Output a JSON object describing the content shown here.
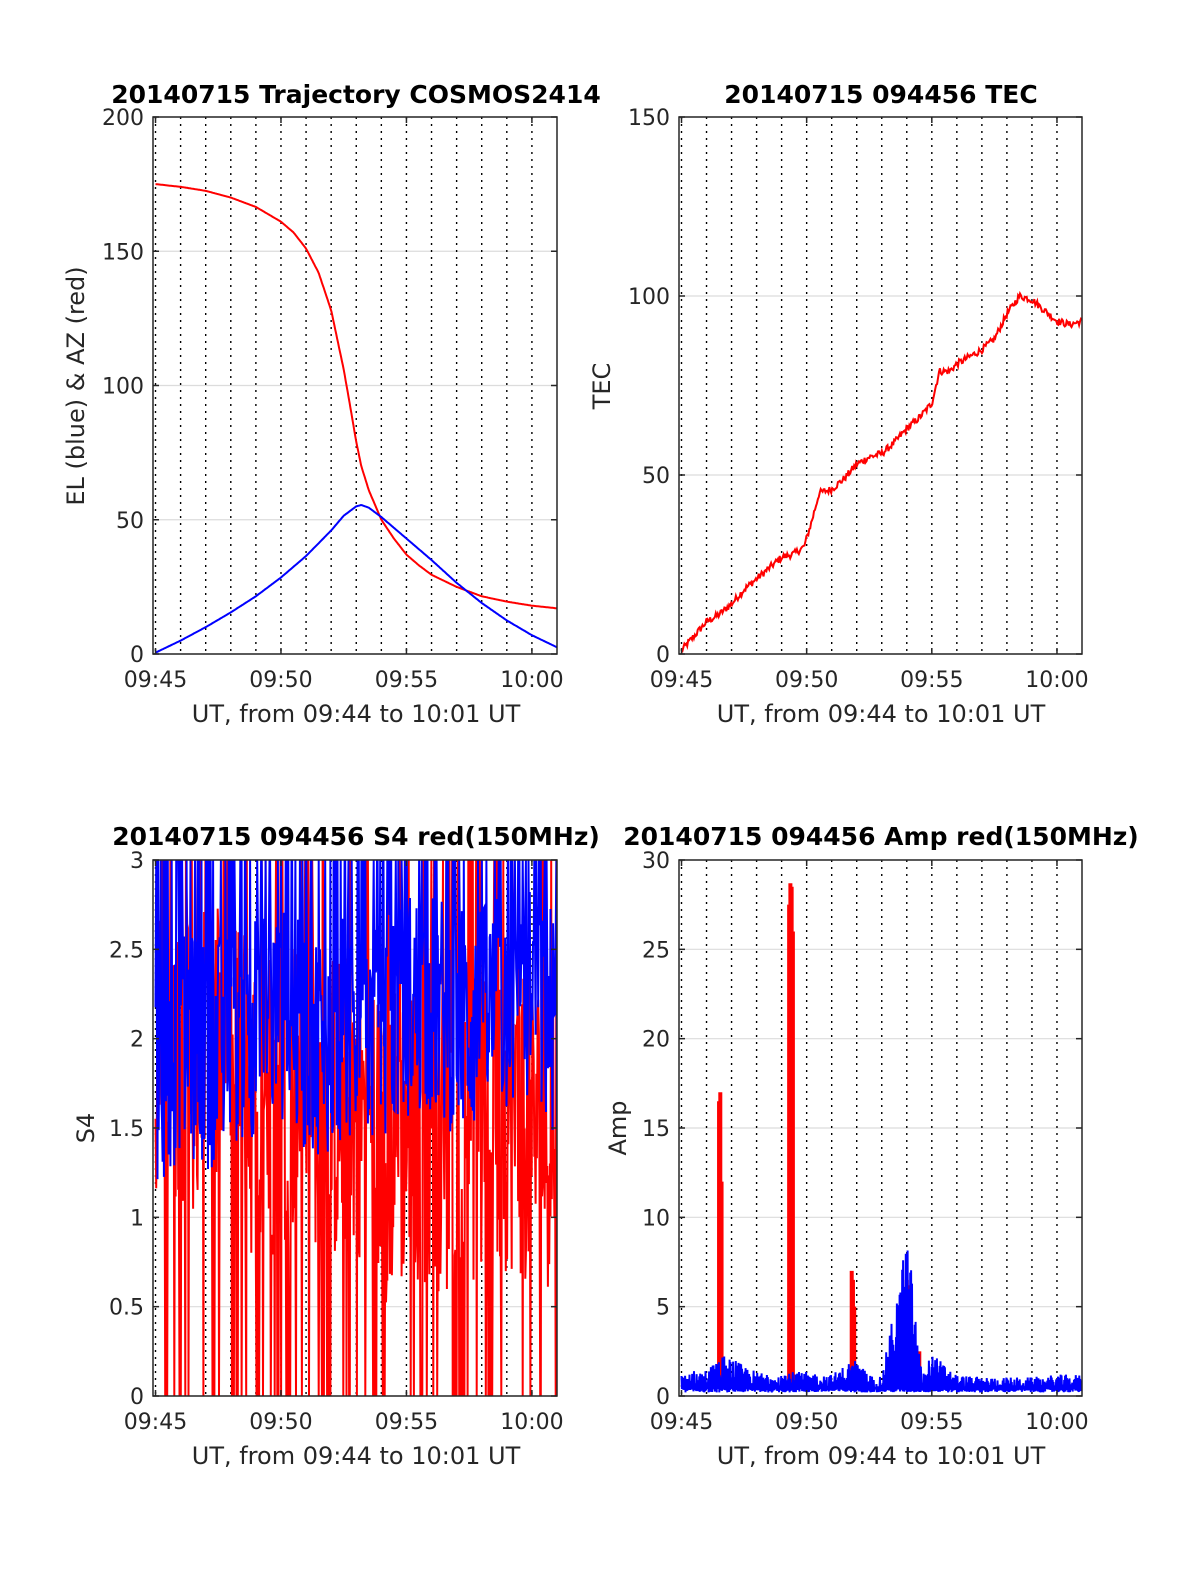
{
  "chart_data": [
    {
      "type": "line",
      "title": "20140715 Trajectory COSMOS2414",
      "xlabel": "UT, from 09:44 to 10:01 UT",
      "ylabel": "EL (blue) & AZ (red)",
      "xticks": [
        "09:45",
        "09:50",
        "09:55",
        "10:00"
      ],
      "xlim_min": [
        44.9,
        61.0
      ],
      "ylim": [
        0,
        200
      ],
      "yticks": [
        0,
        50,
        100,
        150,
        200
      ],
      "grid": "on",
      "series": [
        {
          "color": "#ff0000",
          "noise": 0,
          "x": [
            45.0,
            46.0,
            47.0,
            48.0,
            49.0,
            50.0,
            50.5,
            51.0,
            51.5,
            52.0,
            52.5,
            52.8,
            53.0,
            53.2,
            53.5,
            54.0,
            54.5,
            55.0,
            55.5,
            56.0,
            57.0,
            58.0,
            59.0,
            60.0,
            61.0
          ],
          "y": [
            175,
            174,
            172.5,
            170,
            166.5,
            161,
            157,
            151,
            142,
            128,
            106,
            90,
            79,
            70,
            61,
            50,
            43,
            37,
            33,
            29.5,
            25,
            21.5,
            19.5,
            18,
            17
          ]
        },
        {
          "color": "#0000ff",
          "noise": 0,
          "x": [
            45.0,
            46.0,
            47.0,
            48.0,
            49.0,
            50.0,
            51.0,
            52.0,
            52.5,
            53.0,
            53.2,
            53.5,
            54.0,
            55.0,
            56.0,
            57.0,
            58.0,
            59.0,
            60.0,
            61.0
          ],
          "y": [
            0.5,
            5,
            10,
            15.5,
            21.5,
            28.5,
            36.5,
            46,
            51.5,
            55,
            55.5,
            54.5,
            51,
            43,
            35,
            26.5,
            19,
            12.5,
            7,
            2.5
          ]
        }
      ]
    },
    {
      "type": "line",
      "title": "20140715 094456 TEC",
      "xlabel": "UT, from 09:44 to 10:01 UT",
      "ylabel": "TEC",
      "xticks": [
        "09:45",
        "09:50",
        "09:55",
        "10:00"
      ],
      "xlim_min": [
        44.9,
        61.0
      ],
      "ylim": [
        0,
        150
      ],
      "yticks": [
        0,
        50,
        100,
        150
      ],
      "grid": "on",
      "series": [
        {
          "color": "#ff0000",
          "noise": 1.0,
          "x": [
            45.0,
            45.5,
            46.0,
            46.5,
            47.0,
            47.5,
            48.0,
            48.5,
            49.0,
            49.5,
            49.9,
            50.2,
            50.5,
            51.0,
            51.5,
            52.0,
            52.5,
            53.0,
            53.5,
            54.0,
            54.5,
            55.0,
            55.3,
            55.7,
            56.0,
            56.5,
            57.0,
            57.5,
            58.0,
            58.5,
            59.0,
            59.5,
            60.0,
            60.5,
            61.0
          ],
          "y": [
            1,
            5,
            9,
            11,
            14,
            18,
            21,
            24,
            27,
            28,
            30,
            37,
            45,
            46,
            49,
            53,
            55,
            56,
            59,
            63,
            66,
            70,
            79,
            79,
            81,
            83,
            85,
            88,
            95,
            100,
            99,
            96,
            93,
            92,
            93
          ]
        }
      ]
    },
    {
      "type": "line",
      "title": "20140715 094456 S4 red(150MHz)",
      "xlabel": "UT, from 09:44 to 10:01 UT",
      "ylabel": "S4",
      "xticks": [
        "09:45",
        "09:50",
        "09:55",
        "10:00"
      ],
      "xlim_min": [
        44.9,
        61.0
      ],
      "ylim": [
        0,
        3
      ],
      "yticks": [
        0,
        0.5,
        1,
        1.5,
        2,
        2.5,
        3
      ],
      "grid": "on",
      "series": [
        {
          "color": "#ff0000",
          "style": "spiky",
          "x": [
            45.0,
            46.0,
            47.0,
            48.0,
            49.0,
            50.0,
            51.0,
            52.0,
            53.0,
            54.0,
            55.0,
            56.0,
            57.0,
            58.0,
            59.0,
            60.0,
            61.0
          ],
          "y": [
            1.8,
            2.0,
            1.8,
            1.9,
            1.6,
            1.7,
            1.8,
            1.6,
            1.7,
            1.4,
            1.5,
            1.5,
            1.4,
            1.5,
            1.6,
            1.5,
            1.5
          ]
        },
        {
          "color": "#0000ff",
          "style": "spiky",
          "x": [
            45.0,
            46.0,
            47.0,
            48.0,
            49.0,
            50.0,
            51.0,
            52.0,
            53.0,
            54.0,
            55.0,
            56.0,
            57.0,
            58.0,
            59.0,
            60.0,
            61.0
          ],
          "y": [
            1.7,
            2.0,
            1.9,
            2.0,
            2.1,
            2.1,
            2.0,
            2.0,
            2.1,
            2.0,
            2.2,
            2.2,
            2.1,
            2.1,
            2.2,
            2.2,
            2.1
          ]
        }
      ]
    },
    {
      "type": "line",
      "title": "20140715 094456 Amp red(150MHz)",
      "xlabel": "UT, from 09:44 to 10:01 UT",
      "ylabel": "Amp",
      "xticks": [
        "09:45",
        "09:50",
        "09:55",
        "10:00"
      ],
      "xlim_min": [
        44.9,
        61.0
      ],
      "ylim": [
        0,
        30
      ],
      "yticks": [
        0,
        5,
        10,
        15,
        20,
        25,
        30
      ],
      "grid": "on",
      "series": [
        {
          "color": "#ff0000",
          "style": "bursts",
          "x": [
            46.5,
            46.55,
            46.6,
            49.3,
            49.35,
            49.4,
            49.45,
            51.8,
            51.85,
            51.9,
            54.0,
            54.05,
            54.1,
            54.5
          ],
          "y": [
            16.5,
            17.0,
            12.0,
            27.5,
            28.7,
            28.5,
            26.0,
            7.0,
            6.5,
            5.0,
            6.5,
            6.2,
            5.5,
            2.5
          ]
        },
        {
          "color": "#0000ff",
          "style": "noise-floor",
          "x": [
            45.0,
            46.0,
            46.8,
            47.0,
            48.0,
            49.0,
            50.0,
            51.0,
            51.9,
            52.5,
            53.0,
            54.0,
            54.1,
            54.6,
            55.0,
            56.0,
            57.0,
            58.0,
            59.0,
            60.0,
            61.0
          ],
          "y": [
            0.9,
            1.0,
            1.6,
            1.4,
            0.9,
            0.9,
            0.9,
            0.8,
            1.4,
            0.8,
            0.7,
            6.0,
            5.5,
            0.8,
            1.6,
            0.8,
            0.7,
            0.7,
            0.7,
            0.8,
            0.8
          ]
        }
      ]
    }
  ]
}
